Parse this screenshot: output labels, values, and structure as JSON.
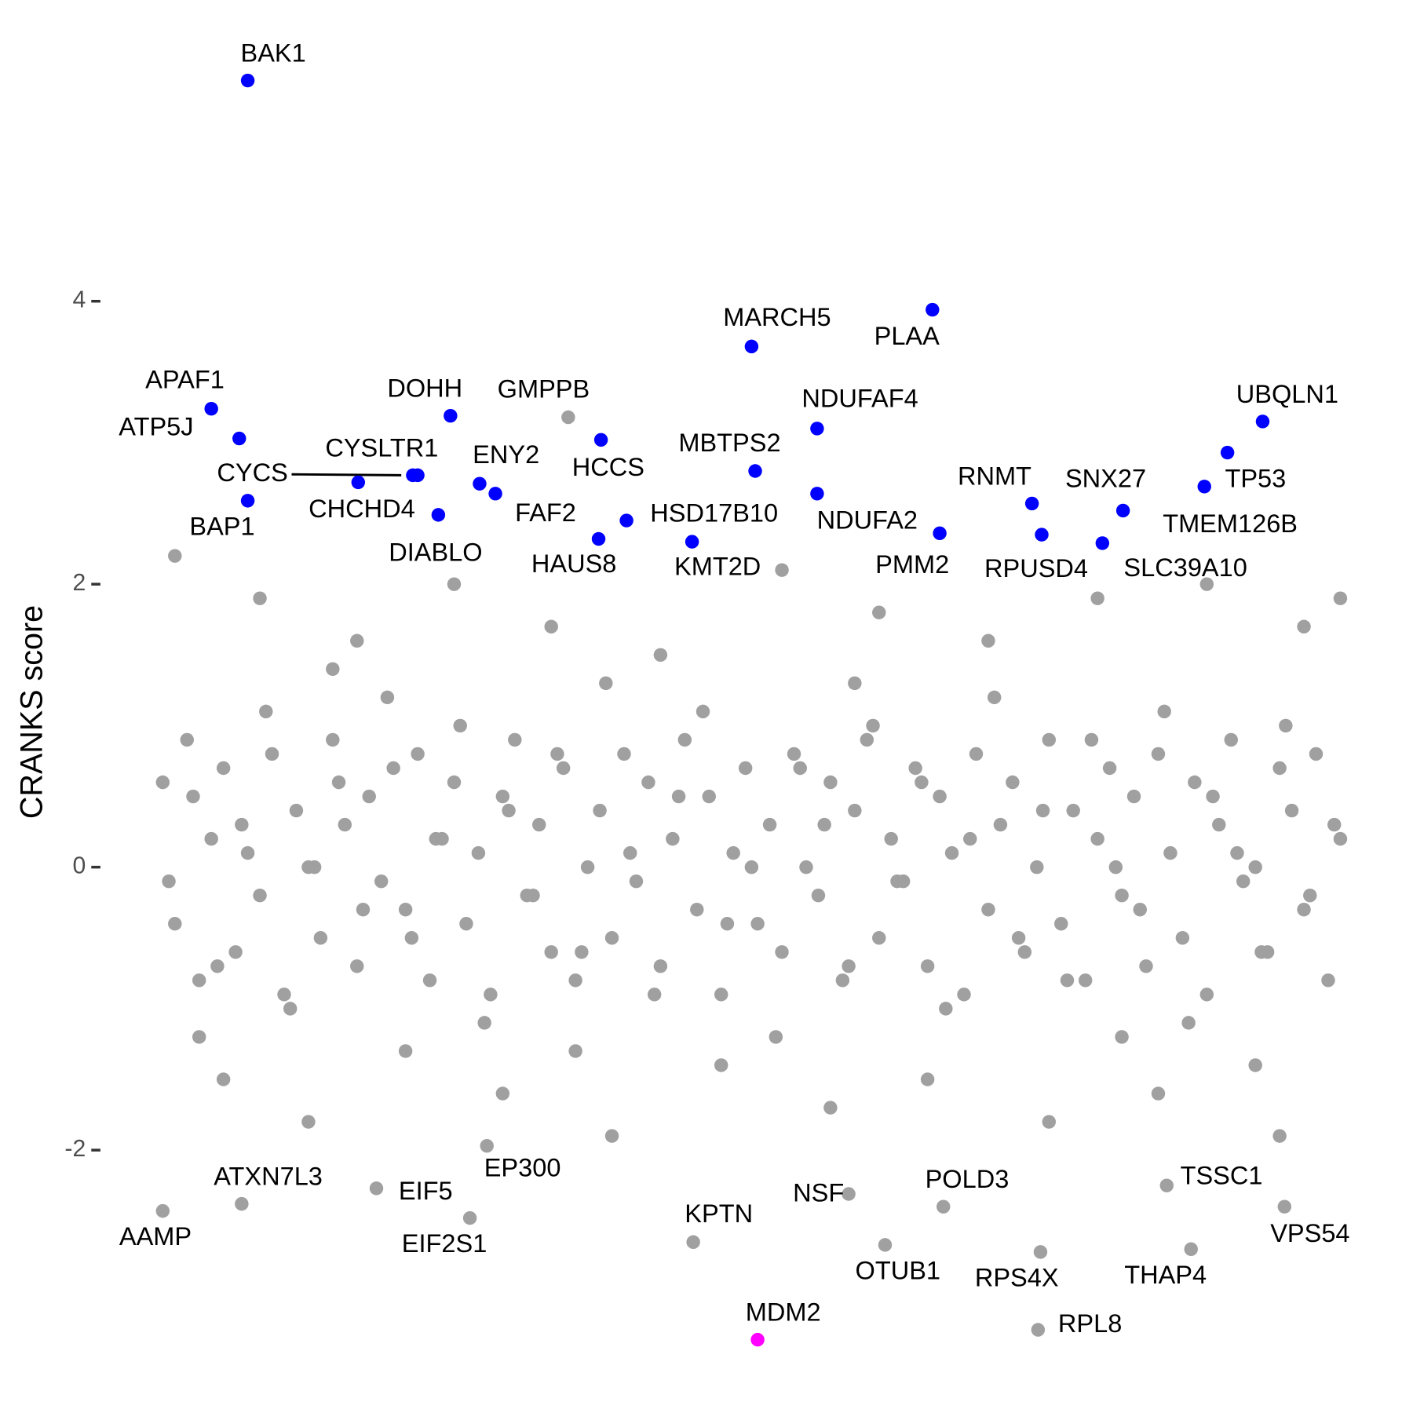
{
  "chart_data": {
    "type": "scatter",
    "y_label": "CRANKS score",
    "xlim": [
      0,
      100
    ],
    "ylim": [
      -3.6,
      5.75
    ],
    "yticks": [
      -2,
      0,
      2,
      4
    ],
    "grid": false,
    "series": [
      {
        "color": "#a0a0a0",
        "x": [
          1,
          2,
          3,
          4,
          5,
          6,
          7,
          8,
          9,
          10,
          11,
          12,
          13,
          14,
          15,
          16,
          17,
          18,
          19,
          20,
          21,
          22,
          23,
          24,
          25,
          26,
          27,
          28,
          29,
          30,
          31,
          32,
          33,
          34,
          35,
          36,
          37,
          38,
          39,
          40,
          41,
          42,
          43,
          44,
          45,
          46,
          47,
          48,
          49,
          50,
          51,
          52,
          53,
          54,
          55,
          56,
          57,
          58,
          59,
          60,
          61,
          62,
          63,
          64,
          65,
          66,
          67,
          68,
          69,
          70,
          71,
          72,
          73,
          74,
          75,
          76,
          77,
          78,
          79,
          80,
          81,
          82,
          83,
          84,
          85,
          86,
          87,
          88,
          89,
          90,
          91,
          92,
          93,
          94,
          95,
          96,
          97,
          98
        ],
        "values": [
          0.6,
          -0.4,
          0.9,
          -0.8,
          0.2,
          0.7,
          -0.6,
          0.1,
          -0.2,
          0.8,
          -0.9,
          0.4,
          0.0,
          -0.5,
          0.9,
          0.3,
          -0.7,
          0.5,
          -0.1,
          0.7,
          -0.3,
          0.8,
          -0.8,
          0.2,
          0.6,
          -0.4,
          0.1,
          -0.9,
          0.5,
          0.9,
          -0.2,
          0.3,
          -0.6,
          0.7,
          -0.8,
          0.0,
          0.4,
          -0.5,
          0.8,
          -0.1,
          0.6,
          -0.7,
          0.2,
          0.9,
          -0.3,
          0.5,
          -0.9,
          0.1,
          0.7,
          -0.4,
          0.3,
          -0.6,
          0.8,
          0.0,
          -0.2,
          0.6,
          -0.8,
          0.4,
          0.9,
          -0.5,
          0.2,
          -0.1,
          0.7,
          -0.7,
          0.5,
          0.1,
          -0.9,
          0.8,
          -0.3,
          0.3,
          0.6,
          -0.6,
          0.0,
          0.9,
          -0.4,
          0.4,
          -0.8,
          0.2,
          0.7,
          -0.2,
          0.5,
          -0.7,
          0.8,
          0.1,
          -0.5,
          0.6,
          -0.9,
          0.3,
          0.9,
          -0.1,
          0.0,
          -0.6,
          0.7,
          0.4,
          -0.3,
          0.8,
          -0.8,
          0.2
        ]
      },
      {
        "color": "#a0a0a0",
        "x": [
          1.5,
          3.5,
          5.5,
          7.5,
          9.5,
          11.5,
          13.5,
          15.5,
          17.5,
          19.5,
          21.5,
          23.5,
          25.5,
          27.5,
          29.5,
          31.5,
          33.5,
          35.5,
          37.5,
          39.5,
          41.5,
          43.5,
          45.5,
          47.5,
          49.5,
          51.5,
          53.5,
          55.5,
          57.5,
          59.5,
          61.5,
          63.5,
          65.5,
          67.5,
          69.5,
          71.5,
          73.5,
          75.5,
          77.5,
          79.5,
          81.5,
          83.5,
          85.5,
          87.5,
          89.5,
          91.5,
          93.5,
          95.5,
          97.5
        ],
        "values": [
          -0.1,
          0.5,
          -0.7,
          0.3,
          1.1,
          -1.0,
          0.0,
          0.6,
          -0.3,
          1.2,
          -0.5,
          0.2,
          1.0,
          -1.1,
          0.4,
          -0.2,
          0.8,
          -0.6,
          1.3,
          0.1,
          -0.9,
          0.5,
          1.1,
          -0.4,
          0.0,
          -1.2,
          0.7,
          0.3,
          -0.7,
          1.0,
          -0.1,
          0.6,
          -1.0,
          0.2,
          1.2,
          -0.5,
          0.4,
          -0.8,
          0.9,
          0.0,
          -0.3,
          1.1,
          -1.1,
          0.5,
          0.1,
          -0.6,
          1.0,
          -0.2,
          0.3
        ]
      },
      {
        "color": "#a0a0a0",
        "x": [
          2,
          6,
          9,
          13,
          17,
          21,
          25,
          29,
          33,
          38,
          42,
          47,
          52,
          56,
          60,
          64,
          69,
          74,
          78,
          83,
          87,
          91,
          95,
          98,
          4,
          15,
          35,
          58,
          80,
          93
        ],
        "values": [
          2.2,
          -1.5,
          1.9,
          -1.8,
          1.6,
          -1.3,
          2.0,
          -1.6,
          1.7,
          -1.9,
          1.5,
          -1.4,
          2.1,
          -1.7,
          1.8,
          -1.5,
          1.6,
          -1.8,
          1.9,
          -1.6,
          2.0,
          -1.4,
          1.7,
          1.9,
          -1.2,
          1.4,
          -1.3,
          1.3,
          -1.2,
          -1.9
        ]
      },
      {
        "color": "#a0a0a0",
        "labels": [
          "GMPPB",
          "AAMP",
          "ATXN7L3",
          "EIF5",
          "EIF2S1",
          "EP300",
          "KPTN",
          "NSF",
          "OTUB1",
          "POLD3",
          "RPS4X",
          "RPL8",
          "THAP4",
          "TSSC1",
          "VPS54"
        ],
        "x": [
          34.4,
          1.0,
          7.5,
          18.6,
          26.3,
          27.7,
          44.7,
          57.5,
          60.5,
          65.3,
          73.3,
          73.1,
          85.7,
          83.7,
          93.4
        ],
        "values": [
          3.18,
          -2.43,
          -2.38,
          -2.27,
          -2.48,
          -1.97,
          -2.65,
          -2.31,
          -2.67,
          -2.4,
          -2.72,
          -3.27,
          -2.7,
          -2.25,
          -2.4
        ]
      },
      {
        "color": "#0000ff",
        "labels": [
          "BAK1",
          "APAF1",
          "ATP5J",
          "CYCS",
          "CYSLTR1",
          "CHCHD4",
          "BAP1",
          "DOHH",
          "DIABLO",
          "ENY2",
          "FAF2",
          "HCCS",
          "HAUS8",
          "HSD17B10",
          "KMT2D",
          "MARCH5",
          "MBTPS2",
          "PLAA",
          "NDUFAF4",
          "NDUFA2",
          "PMM2",
          "RNMT",
          "RPUSD4",
          "SNX27",
          "SLC39A10",
          "TP53",
          "TMEM126B",
          "UBQLN1"
        ],
        "x": [
          8.0,
          5.0,
          7.3,
          22.0,
          21.6,
          17.1,
          8.0,
          24.7,
          23.7,
          27.1,
          28.4,
          37.1,
          36.9,
          39.2,
          44.6,
          49.5,
          49.8,
          64.4,
          54.9,
          54.9,
          65.0,
          72.6,
          73.4,
          80.1,
          78.4,
          86.8,
          88.7,
          91.6
        ],
        "values": [
          5.56,
          3.24,
          3.03,
          2.77,
          2.77,
          2.72,
          2.59,
          3.19,
          2.49,
          2.71,
          2.64,
          3.02,
          2.32,
          2.45,
          2.3,
          3.68,
          2.8,
          3.94,
          3.1,
          2.64,
          2.36,
          2.57,
          2.35,
          2.52,
          2.29,
          2.69,
          2.93,
          3.15
        ]
      },
      {
        "color": "#ff00ff",
        "labels": [
          "MDM2"
        ],
        "x": [
          50.0
        ],
        "values": [
          -3.34
        ]
      }
    ]
  }
}
